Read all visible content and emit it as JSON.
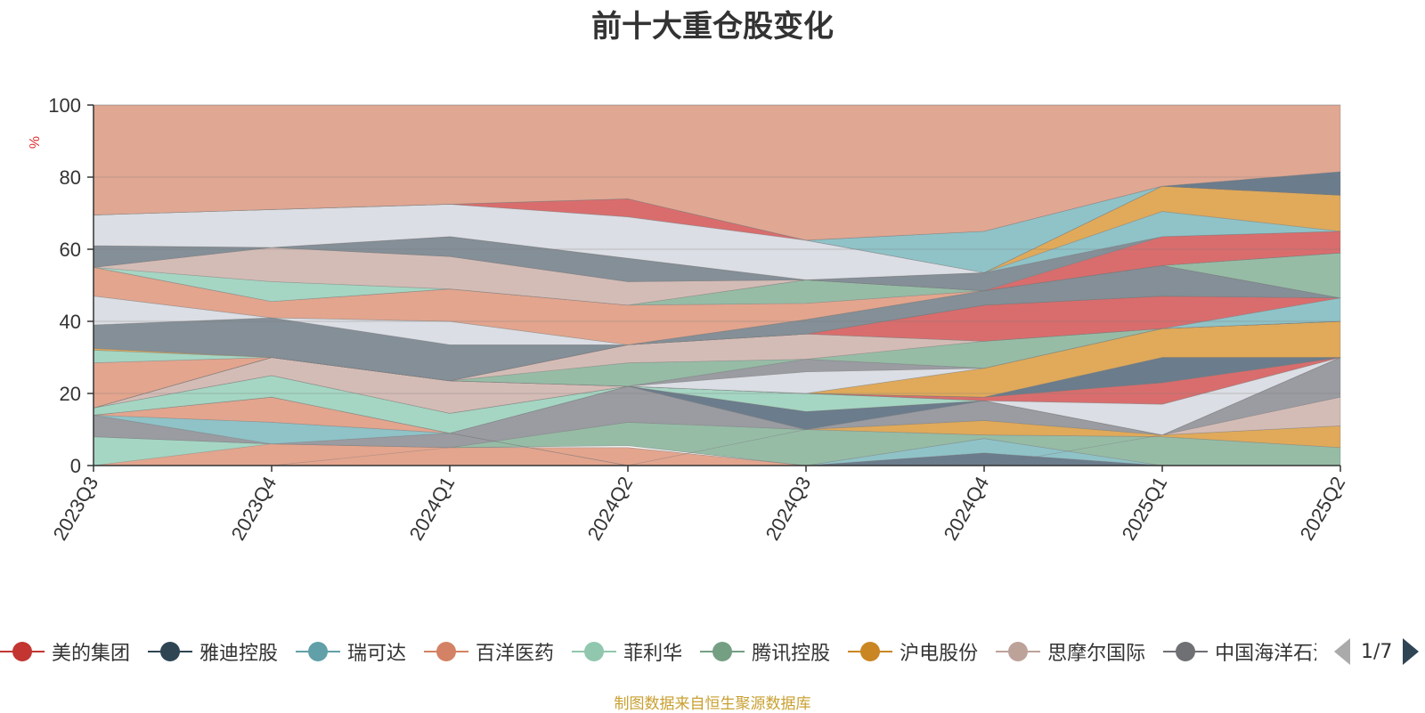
{
  "chart_data": {
    "type": "area",
    "title": "前十大重仓股变化",
    "ylabel": "%",
    "ylim": [
      0,
      100
    ],
    "yticks": [
      0,
      20,
      40,
      60,
      80,
      100
    ],
    "categories": [
      "2023Q3",
      "2023Q4",
      "2024Q1",
      "2024Q2",
      "2024Q3",
      "2024Q4",
      "2025Q1",
      "2025Q2"
    ],
    "grid": true,
    "legend_position": "bottom",
    "bands": [
      {
        "color": "#a5d6c3",
        "lower": [
          0,
          0,
          0,
          0,
          0,
          0,
          0,
          0
        ],
        "upper": [
          8,
          6,
          5,
          5,
          0,
          0,
          0,
          0
        ]
      },
      {
        "color": "#e3a58e",
        "lower": [
          0,
          0,
          0,
          0,
          0,
          0,
          0,
          0
        ],
        "upper": [
          0,
          6,
          5,
          5,
          0,
          0,
          0,
          0
        ]
      },
      {
        "color": "#d96d6d",
        "lower": [
          0,
          0,
          5,
          5.5,
          0,
          0,
          0,
          0
        ],
        "upper": [
          0,
          0,
          5,
          5.5,
          0,
          0,
          0,
          0
        ]
      },
      {
        "color": "#6b7c8c",
        "lower": [
          0,
          0,
          0,
          0,
          0,
          0,
          0,
          0
        ],
        "upper": [
          0,
          0,
          0,
          0,
          0,
          3.5,
          0,
          0
        ]
      },
      {
        "color": "#8fc3c8",
        "lower": [
          0,
          0,
          0,
          0,
          0,
          3.5,
          0,
          0
        ],
        "upper": [
          0,
          0,
          0,
          0,
          0,
          7.5,
          0,
          0
        ]
      },
      {
        "color": "#96bca6",
        "lower": [
          8,
          6,
          5,
          5.5,
          0,
          7.5,
          0,
          0
        ],
        "upper": [
          8,
          6,
          5,
          12,
          10,
          8.5,
          8,
          5
        ]
      },
      {
        "color": "#e0aa5a",
        "lower": [
          0,
          0,
          0,
          0,
          10,
          8.5,
          8,
          5
        ],
        "upper": [
          0,
          0,
          0,
          0,
          10,
          12.5,
          8.5,
          11
        ]
      },
      {
        "color": "#d4bcb6",
        "lower": [
          0,
          0,
          0,
          0,
          0,
          0,
          8.5,
          11
        ],
        "upper": [
          0,
          0,
          0,
          0,
          0,
          0,
          8.5,
          19
        ]
      },
      {
        "color": "#9a9ca2",
        "lower": [
          8,
          6,
          5,
          12,
          10,
          12.5,
          8.5,
          19
        ],
        "upper": [
          14,
          6,
          9,
          22,
          10,
          18,
          8.5,
          30
        ]
      },
      {
        "color": "#8fc3c8",
        "lower": [
          14,
          6,
          9,
          0,
          0,
          0,
          0,
          0
        ],
        "upper": [
          14,
          12,
          9,
          0,
          0,
          0,
          0,
          0
        ]
      },
      {
        "color": "#e3a58e",
        "lower": [
          14,
          12,
          9,
          0,
          0,
          0,
          0,
          0
        ],
        "upper": [
          14,
          19,
          9,
          0,
          0,
          0,
          0,
          0
        ]
      },
      {
        "color": "#6b7c8c",
        "lower": [
          14,
          19,
          9,
          22,
          10,
          18,
          8.5,
          30
        ],
        "upper": [
          14,
          19,
          9,
          22,
          15,
          18,
          8.5,
          30
        ]
      },
      {
        "color": "#dbdee4",
        "lower": [
          14,
          19,
          9,
          22,
          15,
          18,
          8.5,
          30
        ],
        "upper": [
          14,
          19,
          9,
          22,
          15,
          18,
          8.5,
          30
        ]
      },
      {
        "color": "#a5d6c3",
        "lower": [
          14,
          19,
          9,
          22,
          15,
          18,
          8.5,
          30
        ],
        "upper": [
          16,
          25,
          14.5,
          22,
          20,
          18,
          8.5,
          30
        ]
      },
      {
        "color": "#dbdee4",
        "lower": [
          16,
          25,
          14.5,
          22,
          20,
          18,
          8.5,
          30
        ],
        "upper": [
          16,
          25,
          14.5,
          22,
          20,
          18,
          17,
          30
        ]
      },
      {
        "color": "#d96d6d",
        "lower": [
          16,
          25,
          14.5,
          22,
          20,
          18,
          17,
          30
        ],
        "upper": [
          16,
          25,
          14.5,
          22,
          20,
          19,
          23,
          30
        ]
      },
      {
        "color": "#d4bcb6",
        "lower": [
          16,
          25,
          14.5,
          22,
          20,
          19,
          23,
          30
        ],
        "upper": [
          16,
          30,
          23.5,
          22,
          20,
          19,
          23,
          30
        ]
      },
      {
        "color": "#6b7c8c",
        "lower": [
          16,
          30,
          23.5,
          22,
          20,
          19,
          23,
          30
        ],
        "upper": [
          16,
          30,
          23.5,
          22,
          20,
          19,
          30,
          30
        ]
      },
      {
        "color": "#e0aa5a",
        "lower": [
          16,
          30,
          23.5,
          22,
          20,
          19,
          30,
          30
        ],
        "upper": [
          16,
          30,
          23.5,
          22,
          20,
          27,
          38,
          40
        ]
      },
      {
        "color": "#dbdee4",
        "lower": [
          16,
          30,
          23.5,
          22,
          20,
          27,
          38,
          40
        ],
        "upper": [
          16,
          30,
          23.5,
          22,
          26,
          27,
          38,
          40
        ]
      },
      {
        "color": "#9a9ca2",
        "lower": [
          16,
          30,
          23.5,
          22,
          26,
          27,
          38,
          40
        ],
        "upper": [
          16,
          30,
          23.5,
          22,
          29.5,
          27,
          38,
          40
        ]
      },
      {
        "color": "#96bca6",
        "lower": [
          16,
          30,
          23.5,
          22,
          29.5,
          27,
          38,
          40
        ],
        "upper": [
          16,
          30,
          23.5,
          28.5,
          29.5,
          34.5,
          38,
          40
        ]
      },
      {
        "color": "#d4bcb6",
        "lower": [
          16,
          30,
          23.5,
          28.5,
          29.5,
          34.5,
          38,
          40
        ],
        "upper": [
          16,
          30,
          23.5,
          33.5,
          36.5,
          34.5,
          38,
          40
        ]
      },
      {
        "color": "#8fc3c8",
        "lower": [
          16,
          30,
          23.5,
          33.5,
          36.5,
          34.5,
          38,
          40
        ],
        "upper": [
          16,
          30,
          23.5,
          33.5,
          36.5,
          34.5,
          38,
          46.5
        ]
      },
      {
        "color": "#d96d6d",
        "lower": [
          16,
          30,
          23.5,
          33.5,
          36.5,
          34.5,
          38,
          46.5
        ],
        "upper": [
          16,
          30,
          23.5,
          33.5,
          36.5,
          44.5,
          47,
          46.5
        ]
      },
      {
        "color": "#e3a58e",
        "lower": [
          16,
          30,
          23.5,
          33.5,
          36.5,
          44.5,
          47,
          46.5
        ],
        "upper": [
          28.5,
          30,
          23.5,
          33.5,
          36.5,
          44.5,
          47,
          46.5
        ]
      },
      {
        "color": "#a5d6c3",
        "lower": [
          28.5,
          30,
          23.5,
          33.5,
          36.5,
          44.5,
          47,
          46.5
        ],
        "upper": [
          32,
          30,
          23.5,
          33.5,
          36.5,
          44.5,
          47,
          46.5
        ]
      },
      {
        "color": "#e0aa5a",
        "lower": [
          32,
          30,
          23.5,
          33.5,
          36.5,
          44.5,
          47,
          46.5
        ],
        "upper": [
          32.5,
          30,
          23.5,
          33.5,
          36.5,
          44.5,
          47,
          46.5
        ]
      },
      {
        "color": "#848f98",
        "lower": [
          32.5,
          30,
          23.5,
          33.5,
          36.5,
          44.5,
          47,
          46.5
        ],
        "upper": [
          39,
          41,
          33.5,
          33.5,
          40.5,
          48.5,
          55.5,
          46.5
        ]
      },
      {
        "color": "#dbdee4",
        "lower": [
          39,
          41,
          33.5,
          33.5,
          40.5,
          48.5,
          55.5,
          46.5
        ],
        "upper": [
          47,
          41,
          40,
          33.5,
          40.5,
          48.5,
          55.5,
          46.5
        ]
      },
      {
        "color": "#e3a58e",
        "lower": [
          47,
          41,
          40,
          33.5,
          40.5,
          48.5,
          55.5,
          46.5
        ],
        "upper": [
          55,
          45.5,
          49,
          44.5,
          45,
          48.5,
          55.5,
          46.5
        ]
      },
      {
        "color": "#96bca6",
        "lower": [
          55,
          45.5,
          49,
          44.5,
          45,
          48.5,
          55.5,
          46.5
        ],
        "upper": [
          55,
          45.5,
          49,
          44.5,
          51.5,
          48.5,
          55.5,
          59
        ]
      },
      {
        "color": "#a5d6c3",
        "lower": [
          55,
          45.5,
          49,
          44.5,
          51.5,
          48.5,
          55.5,
          59
        ],
        "upper": [
          55,
          51,
          49,
          44.5,
          51.5,
          48.5,
          55.5,
          59
        ]
      },
      {
        "color": "#d4bcb6",
        "lower": [
          55,
          51,
          49,
          44.5,
          51.5,
          48.5,
          55.5,
          59
        ],
        "upper": [
          55,
          60.5,
          58,
          51,
          51.5,
          48.5,
          55.5,
          59
        ]
      },
      {
        "color": "#d96d6d",
        "lower": [
          55,
          60.5,
          58,
          51,
          51.5,
          48.5,
          55.5,
          59
        ],
        "upper": [
          55,
          60.5,
          58,
          51,
          51.5,
          48.5,
          63.5,
          65
        ]
      },
      {
        "color": "#848f98",
        "lower": [
          55,
          60.5,
          58,
          51,
          51.5,
          48.5,
          63.5,
          65
        ],
        "upper": [
          61,
          60.5,
          63.5,
          57.5,
          51.5,
          53.5,
          63.5,
          65
        ]
      },
      {
        "color": "#8fc3c8",
        "lower": [
          61,
          60.5,
          63.5,
          57.5,
          51.5,
          53.5,
          63.5,
          65
        ],
        "upper": [
          61,
          60.5,
          63.5,
          57.5,
          51.5,
          53.5,
          70.5,
          65
        ]
      },
      {
        "color": "#e0aa5a",
        "lower": [
          61,
          60.5,
          63.5,
          57.5,
          51.5,
          53.5,
          70.5,
          65
        ],
        "upper": [
          61,
          60.5,
          63.5,
          57.5,
          51.5,
          53.5,
          77.5,
          75
        ]
      },
      {
        "color": "#dbdee4",
        "lower": [
          61,
          60.5,
          63.5,
          57.5,
          51.5,
          53.5,
          77.5,
          75
        ],
        "upper": [
          69.5,
          71,
          72.5,
          69,
          62.5,
          53.5,
          77.5,
          75
        ]
      },
      {
        "color": "#d96d6d",
        "lower": [
          69.5,
          71,
          72.5,
          69,
          62.5,
          53.5,
          77.5,
          75
        ],
        "upper": [
          69.5,
          71,
          72.5,
          74,
          62.5,
          53.5,
          77.5,
          75
        ]
      },
      {
        "color": "#8fc3c8",
        "lower": [
          69.5,
          71,
          72.5,
          74,
          62.5,
          53.5,
          77.5,
          75
        ],
        "upper": [
          69.5,
          71,
          72.5,
          74,
          62.5,
          65,
          77.5,
          75
        ]
      },
      {
        "color": "#6b7c8c",
        "lower": [
          69.5,
          71,
          72.5,
          74,
          62.5,
          65,
          77.5,
          75
        ],
        "upper": [
          69.5,
          71,
          72.5,
          74,
          62.5,
          65,
          77.5,
          81.5
        ]
      },
      {
        "color": "#e0a793",
        "lower": [
          69.5,
          71,
          72.5,
          74,
          62.5,
          65,
          77.5,
          81.5
        ],
        "upper": [
          100,
          100,
          100,
          100,
          100,
          100,
          100,
          100
        ]
      }
    ]
  },
  "legend": {
    "items": [
      {
        "label": "美的集团",
        "color": "#c23531"
      },
      {
        "label": "雅迪控股",
        "color": "#2f4554"
      },
      {
        "label": "瑞可达",
        "color": "#61a0a8"
      },
      {
        "label": "百洋医药",
        "color": "#d48265"
      },
      {
        "label": "菲利华",
        "color": "#91c7ae"
      },
      {
        "label": "腾讯控股",
        "color": "#749f83"
      },
      {
        "label": "沪电股份",
        "color": "#ca8622"
      },
      {
        "label": "思摩尔国际",
        "color": "#bda29a"
      },
      {
        "label": "中国海洋石油",
        "color": "#6e7074"
      }
    ],
    "page_text": "1/7"
  },
  "footer": {
    "source": "制图数据来自恒生聚源数据库"
  }
}
